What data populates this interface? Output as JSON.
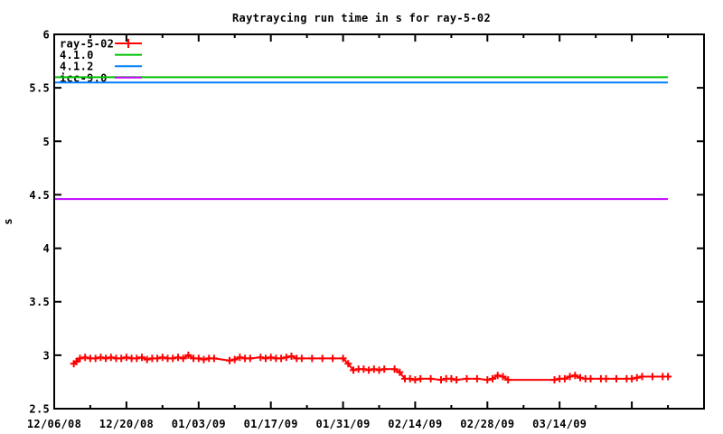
{
  "window": {
    "background_color": "#ffffff",
    "foreground_color": "#000000"
  },
  "chart_data": {
    "type": "line",
    "title": "Raytraycing run time in s for ray-5-02",
    "xlabel": "",
    "ylabel": "s",
    "ylim": [
      2.5,
      6
    ],
    "grid": false,
    "legend_position": "top-left",
    "y_ticks": [
      {
        "value": 2.5,
        "label": "2.5"
      },
      {
        "value": 3,
        "label": "3"
      },
      {
        "value": 3.5,
        "label": "3.5"
      },
      {
        "value": 4,
        "label": "4"
      },
      {
        "value": 4.5,
        "label": "4.5"
      },
      {
        "value": 5,
        "label": "5"
      },
      {
        "value": 5.5,
        "label": "5.5"
      },
      {
        "value": 6,
        "label": "6"
      }
    ],
    "x_axis": {
      "kind": "date",
      "start_label": "12/06/08",
      "days_range": [
        0,
        126
      ],
      "major_tick_days": [
        0,
        14,
        28,
        42,
        56,
        70,
        84,
        98,
        112
      ],
      "minor_tick_days": [
        7,
        21,
        35,
        49,
        63,
        77,
        91,
        105,
        119
      ],
      "tick_labels": [
        {
          "day": 0,
          "label": "12/06/08"
        },
        {
          "day": 14,
          "label": "12/20/08"
        },
        {
          "day": 28,
          "label": "01/03/09"
        },
        {
          "day": 42,
          "label": "01/17/09"
        },
        {
          "day": 56,
          "label": "01/31/09"
        },
        {
          "day": 70,
          "label": "02/14/09"
        },
        {
          "day": 84,
          "label": "02/28/09"
        },
        {
          "day": 98,
          "label": "03/14/09"
        }
      ]
    },
    "series": [
      {
        "name": "ray-5-02",
        "color": "#ff0000",
        "style": "linespoints",
        "marker": "plus",
        "points": [
          [
            3.8,
            2.92
          ],
          [
            4.3,
            2.94
          ],
          [
            5,
            2.97
          ],
          [
            6,
            2.98
          ],
          [
            7,
            2.97
          ],
          [
            8,
            2.97
          ],
          [
            9,
            2.98
          ],
          [
            10,
            2.97
          ],
          [
            11,
            2.98
          ],
          [
            12,
            2.97
          ],
          [
            13,
            2.97
          ],
          [
            14,
            2.98
          ],
          [
            15,
            2.97
          ],
          [
            16,
            2.97
          ],
          [
            17,
            2.98
          ],
          [
            18,
            2.96
          ],
          [
            19,
            2.97
          ],
          [
            20,
            2.97
          ],
          [
            21,
            2.98
          ],
          [
            22,
            2.97
          ],
          [
            23,
            2.97
          ],
          [
            24,
            2.98
          ],
          [
            25,
            2.97
          ],
          [
            26,
            3.0
          ],
          [
            27,
            2.97
          ],
          [
            28,
            2.97
          ],
          [
            29,
            2.96
          ],
          [
            30,
            2.97
          ],
          [
            31,
            2.97
          ],
          [
            34,
            2.95
          ],
          [
            35,
            2.96
          ],
          [
            36,
            2.98
          ],
          [
            37,
            2.97
          ],
          [
            38,
            2.97
          ],
          [
            40,
            2.98
          ],
          [
            41,
            2.97
          ],
          [
            42,
            2.98
          ],
          [
            43,
            2.97
          ],
          [
            44,
            2.97
          ],
          [
            45,
            2.98
          ],
          [
            46,
            2.99
          ],
          [
            47,
            2.97
          ],
          [
            48,
            2.97
          ],
          [
            50,
            2.97
          ],
          [
            52,
            2.97
          ],
          [
            54,
            2.97
          ],
          [
            56,
            2.97
          ],
          [
            57,
            2.92
          ],
          [
            58,
            2.86
          ],
          [
            59,
            2.87
          ],
          [
            60,
            2.87
          ],
          [
            61,
            2.86
          ],
          [
            62,
            2.87
          ],
          [
            63,
            2.86
          ],
          [
            64,
            2.87
          ],
          [
            66,
            2.87
          ],
          [
            67,
            2.84
          ],
          [
            68,
            2.78
          ],
          [
            69,
            2.78
          ],
          [
            70,
            2.77
          ],
          [
            71,
            2.78
          ],
          [
            73,
            2.78
          ],
          [
            75,
            2.77
          ],
          [
            76,
            2.78
          ],
          [
            77,
            2.78
          ],
          [
            78,
            2.77
          ],
          [
            80,
            2.78
          ],
          [
            82,
            2.78
          ],
          [
            84,
            2.77
          ],
          [
            85,
            2.78
          ],
          [
            86,
            2.81
          ],
          [
            87,
            2.8
          ],
          [
            88,
            2.77
          ],
          [
            97,
            2.77
          ],
          [
            98,
            2.78
          ],
          [
            99,
            2.78
          ],
          [
            100,
            2.8
          ],
          [
            101,
            2.81
          ],
          [
            102,
            2.79
          ],
          [
            103,
            2.78
          ],
          [
            104,
            2.78
          ],
          [
            106,
            2.78
          ],
          [
            107,
            2.78
          ],
          [
            109,
            2.78
          ],
          [
            111,
            2.78
          ],
          [
            112,
            2.78
          ],
          [
            113,
            2.79
          ],
          [
            114,
            2.8
          ],
          [
            116,
            2.8
          ],
          [
            118,
            2.8
          ],
          [
            119,
            2.8
          ]
        ]
      },
      {
        "name": "4.1.0",
        "color": "#00c000",
        "style": "line",
        "value": 5.6,
        "days": [
          0,
          119
        ]
      },
      {
        "name": "4.1.2",
        "color": "#0080ff",
        "style": "line",
        "value": 5.55,
        "days": [
          0,
          119
        ]
      },
      {
        "name": "icc-9.0",
        "color": "#c000ff",
        "style": "line",
        "value": 4.46,
        "days": [
          0,
          119
        ]
      }
    ]
  }
}
